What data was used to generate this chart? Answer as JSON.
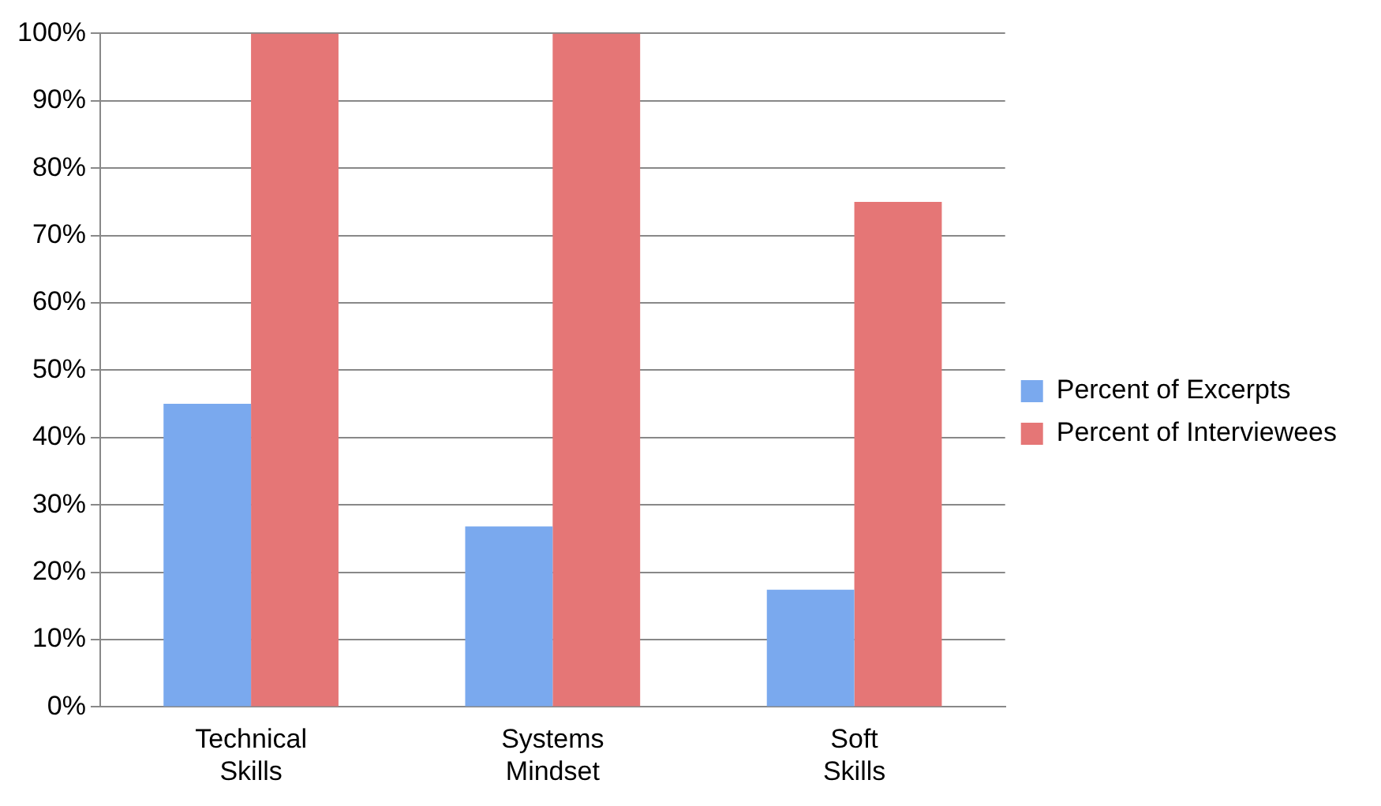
{
  "chart_data": {
    "type": "bar",
    "categories": [
      "Technical Skills",
      "Systems Mindset",
      "Soft Skills"
    ],
    "series": [
      {
        "name": "Percent of Excerpts",
        "color": "#7aa9ee",
        "values": [
          45,
          26.8,
          17.4
        ]
      },
      {
        "name": "Percent of Interviewees",
        "color": "#e57676",
        "values": [
          100,
          100,
          75
        ]
      }
    ],
    "ylim": [
      0,
      100
    ],
    "yticks": [
      {
        "value": 0,
        "label": "0%"
      },
      {
        "value": 10,
        "label": "10%"
      },
      {
        "value": 20,
        "label": "20%"
      },
      {
        "value": 30,
        "label": "30%"
      },
      {
        "value": 40,
        "label": "40%"
      },
      {
        "value": 50,
        "label": "50%"
      },
      {
        "value": 60,
        "label": "60%"
      },
      {
        "value": 70,
        "label": "70%"
      },
      {
        "value": 80,
        "label": "80%"
      },
      {
        "value": 90,
        "label": "90%"
      },
      {
        "value": 100,
        "label": "100%"
      }
    ],
    "grid": "y",
    "legend": "right"
  }
}
